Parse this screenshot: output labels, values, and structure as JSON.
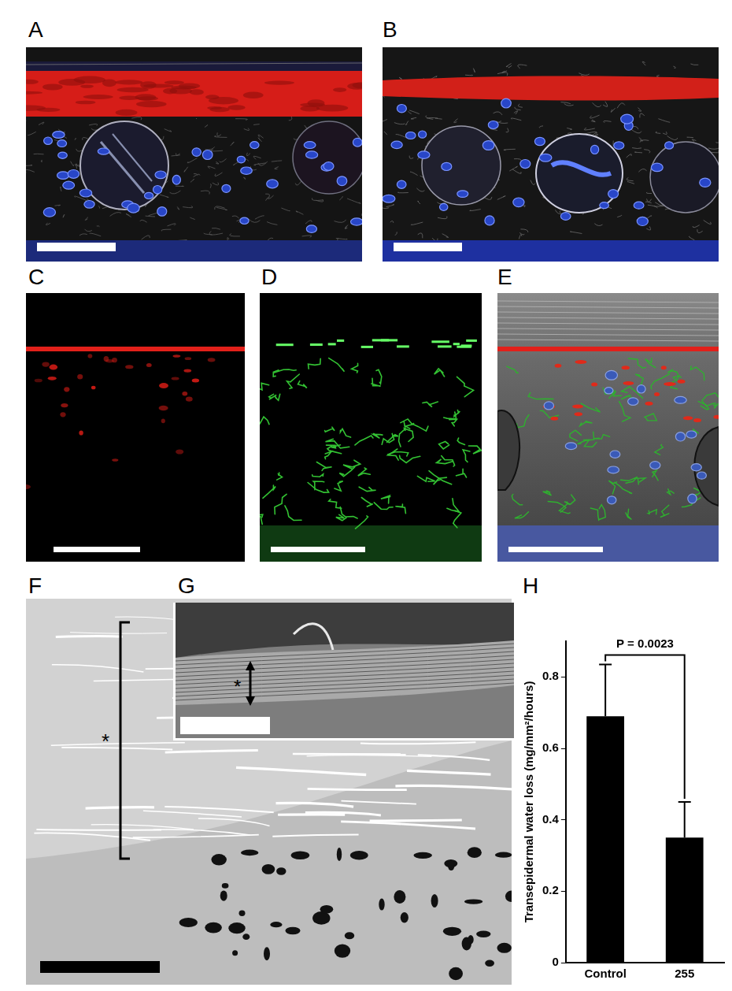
{
  "panels": [
    "A",
    "B",
    "C",
    "D",
    "E",
    "F",
    "G",
    "H"
  ],
  "annotations": {
    "F": "*",
    "G": "*"
  },
  "chart_data": {
    "type": "bar",
    "categories": [
      "Control",
      "255"
    ],
    "values": [
      0.69,
      0.35
    ],
    "errors": [
      0.145,
      0.1
    ],
    "color": "#000000",
    "y_label": "Transepidermal water loss (mg/mm²/hours)",
    "ylim": [
      0,
      0.9
    ],
    "yticks": [
      0,
      0.2,
      0.4,
      0.6,
      0.8
    ],
    "grid": false,
    "annotations": [
      {
        "text": "P = 0.0023",
        "between": [
          "Control",
          "255"
        ]
      }
    ]
  }
}
